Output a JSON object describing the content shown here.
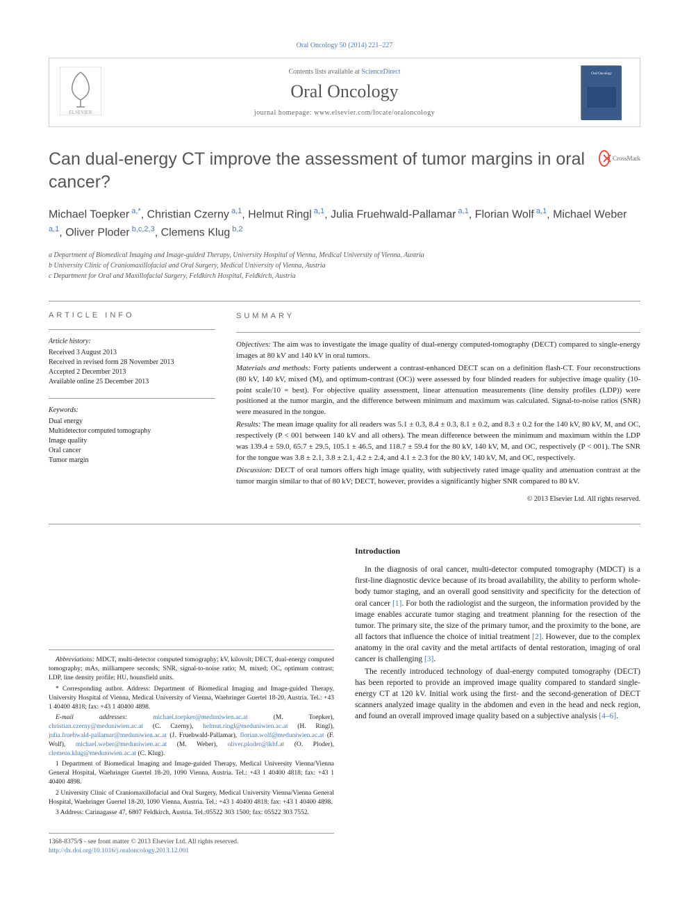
{
  "citation": "Oral Oncology 50 (2014) 221–227",
  "header": {
    "contents_prefix": "Contents lists available at ",
    "contents_link": "ScienceDirect",
    "journal": "Oral Oncology",
    "homepage_label": "journal homepage: www.elsevier.com/locate/oraloncology"
  },
  "title": "Can dual-energy CT improve the assessment of tumor margins in oral cancer?",
  "crossmark_label": "CrossMark",
  "authors_html": "Michael Toepker<span class='sup'> a,*</span>, Christian Czerny<span class='sup'> a,1</span>, Helmut Ringl<span class='sup'> a,1</span>, Julia Fruehwald-Pallamar<span class='sup'> a,1</span>, Florian Wolf<span class='sup'> a,1</span>, Michael Weber<span class='sup'> a,1</span>, Oliver Ploder<span class='sup'> b,c,2,3</span>, Clemens Klug<span class='sup'> b,2</span>",
  "affiliations": {
    "a": "a Department of Biomedical Imaging and Image-guided Therapy, University Hospital of Vienna, Medical University of Vienna, Austria",
    "b": "b University Clinic of Craniomaxillofacial and Oral Surgery, Medical University of Vienna, Austria",
    "c": "c Department for Oral and Maxillofacial Surgery, Feldkirch Hospital, Feldkirch, Austria"
  },
  "article_info": {
    "heading": "ARTICLE INFO",
    "history_label": "Article history:",
    "history": [
      "Received 3 August 2013",
      "Received in revised form 28 November 2013",
      "Accepted 2 December 2013",
      "Available online 25 December 2013"
    ],
    "keywords_label": "Keywords:",
    "keywords": [
      "Dual energy",
      "Multidetector computed tomography",
      "Image quality",
      "Oral cancer",
      "Tumor margin"
    ]
  },
  "summary": {
    "heading": "SUMMARY",
    "objectives_label": "Objectives:",
    "objectives": " The aim was to investigate the image quality of dual-energy computed-tomography (DECT) compared to single-energy images at 80 kV and 140 kV in oral tumors.",
    "methods_label": "Materials and methods:",
    "methods": " Forty patients underwent a contrast-enhanced DECT scan on a definition flash-CT. Four reconstructions (80 kV, 140 kV, mixed (M), and optimum-contrast (OC)) were assessed by four blinded readers for subjective image quality (10-point scale/10 = best). For objective quality assessment, linear attenuation measurements (line density profiles (LDP)) were positioned at the tumor margin, and the difference between minimum and maximum was calculated. Signal-to-noise ratios (SNR) were measured in the tongue.",
    "results_label": "Results:",
    "results": " The mean image quality for all readers was 5.1 ± 0.3, 8.4 ± 0.3, 8.1 ± 0.2, and 8.3 ± 0.2 for the 140 kV, 80 kV, M, and OC, respectively (P < 001 between 140 kV and all others). The mean difference between the minimum and maximum within the LDP was 139.4 ± 59.0, 65.7 ± 29.5, 105.1 ± 46.5, and 118.7 ± 59.4 for the 80 kV, 140 kV, M, and OC, respectively (P < 001). The SNR for the tongue was 3.8 ± 2.1, 3.8 ± 2.1, 4.2 ± 2.4, and 4.1 ± 2.3 for the 80 kV, 140 kV, M, and OC, respectively.",
    "discussion_label": "Discussion:",
    "discussion": " DECT of oral tumors offers high image quality, with subjectively rated image quality and attenuation contrast at the tumor margin similar to that of 80 kV; DECT, however, provides a significantly higher SNR compared to 80 kV.",
    "copyright": "© 2013 Elsevier Ltd. All rights reserved."
  },
  "footnotes": {
    "abbrev_label": "Abbreviations:",
    "abbrev": " MDCT, multi-detector computed tomography; kV, kilovolt; DECT, dual-energy computed tomography; mAs, milliampere seconds; SNR, signal-to-noise ratio; M, mixed; OC, optimum contrast; LDP, line density profile; HU, hounsfield units.",
    "corr": "* Corresponding author. Address: Department of Biomedical Imaging and Image-guided Therapy, University Hospital of Vienna, Medical University of Vienna, Waehringer Guertel 18-20, Austria. Tel.: +43 1 40400 4818; fax: +43 1 40400 4898.",
    "email_label": "E-mail addresses:",
    "emails": " michael.toepker@meduniwien.ac.at (M. Toepker), christian.czerny@meduniwien.ac.at (C. Czerny), helmut.ringl@meduniwien.ac.at (H. Ringl), julia.fruehwald-pallamar@meduniwien.ac.at (J. Fruehwald-Pallamar), florian.wolf@meduniwien.ac.at (F. Wolf), michael.weber@meduniwien.ac.at (M. Weber), oliver.ploder@lkhf.at (O. Ploder), clemens.klug@meduniwien.ac.at (C. Klug).",
    "fn1": "1 Department of Biomedical Imaging and Image-guided Therapy, Medical University Vienna/Vienna General Hospital, Waehringer Guertel 18-20, 1090 Vienna, Austria. Tel.: +43 1 40400 4818; fax: +43 1 40400 4898.",
    "fn2": "2 University Clinic of Craniomaxillofacial and Oral Surgery, Medical University Vienna/Vienna General Hospital, Waehringer Guertel 18-20, 1090 Vienna, Austria. Tel.: +43 1 40400 4818; fax: +43 1 40400 4898.",
    "fn3": "3 Address: Carinagasse 47, 6807 Feldkirch, Austria. Tel.:05522 303 1500; fax: 05522 303 7552."
  },
  "intro": {
    "heading": "Introduction",
    "p1": "In the diagnosis of oral cancer, multi-detector computed tomography (MDCT) is a first-line diagnostic device because of its broad availability, the ability to perform whole-body tumor staging, and an overall good sensitivity and specificity for the detection of oral cancer [1]. For both the radiologist and the surgeon, the information provided by the image enables accurate tumor staging and treatment planning for the resection of the tumor. The primary site, the size of the primary tumor, and the proximity to the bone, are all factors that influence the choice of initial treatment [2]. However, due to the complex anatomy in the oral cavity and the metal artifacts of dental restoration, imaging of oral cancer is challenging [3].",
    "p2": "The recently introduced technology of dual-energy computed tomography (DECT) has been reported to provide an improved image quality compared to standard single-energy CT at 120 kV. Initial work using the first- and the second-generation of DECT scanners analyzed image quality in the abdomen and even in the head and neck region, and found an overall improved image quality based on a subjective analysis [4–6]."
  },
  "bottom": {
    "line1": "1368-8375/$ - see front matter © 2013 Elsevier Ltd. All rights reserved.",
    "doi": "http://dx.doi.org/10.1016/j.oraloncology.2013.12.001"
  },
  "colors": {
    "link": "#4a7bb5",
    "text": "#222222",
    "muted": "#666666",
    "border": "#999999"
  }
}
